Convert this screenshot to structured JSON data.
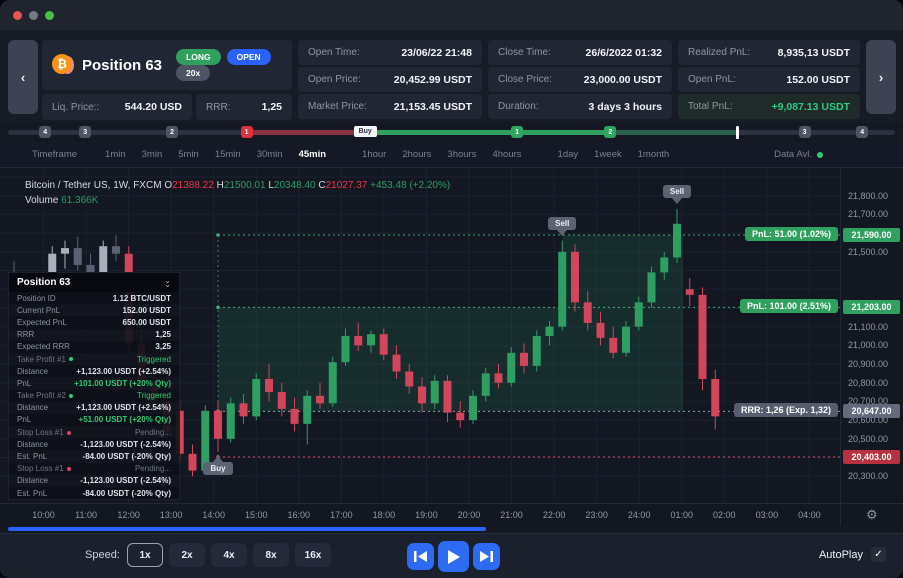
{
  "window": {
    "traffic_lights": [
      "#e8564f",
      "#757a82",
      "#46c240"
    ]
  },
  "header": {
    "title": "Position 63",
    "badges": [
      {
        "label": "LONG",
        "color": "#2fa05e"
      },
      {
        "label": "OPEN",
        "color": "#2962ff"
      },
      {
        "label": "20x",
        "color": "#4d5464"
      }
    ],
    "liq_cell": {
      "label": "Liq. Price::",
      "value": "544.20 USD"
    },
    "rrr_cell": {
      "label": "RRR:",
      "value": "1,25"
    },
    "stats": [
      {
        "label": "Open Time:",
        "value": "23/06/22 21:48"
      },
      {
        "label": "Close Time:",
        "value": "26/6/2022 01:32"
      },
      {
        "label": "Realized PnL:",
        "value": "8,935,13 USDT"
      },
      {
        "label": "Open Price:",
        "value": "20,452.99 USDT"
      },
      {
        "label": "Close Price:",
        "value": "23,000.00 USDT"
      },
      {
        "label": "Open PnL:",
        "value": "152.00 USDT"
      },
      {
        "label": "Market Price:",
        "value": "21,153.45 USDT"
      },
      {
        "label": "Duration:",
        "value": "3 days 3 hours"
      },
      {
        "label": "Total PnL:",
        "value": "+9,087.13 USDT",
        "value_color": "#2ecb81",
        "cell_bg": "#1e2b29"
      }
    ],
    "nav_left": "‹",
    "nav_right": "›"
  },
  "replay_bar": {
    "segments": [
      {
        "from": 0.269,
        "to": 0.402,
        "color": "#8a3340"
      },
      {
        "from": 0.402,
        "to": 0.679,
        "color": "#2fa05e"
      },
      {
        "from": 0.679,
        "to": 0.822,
        "color": "#27634a"
      }
    ],
    "markers": [
      {
        "label": "4",
        "pos": 0.042,
        "color": "#4d5464"
      },
      {
        "label": "3",
        "pos": 0.087,
        "color": "#4d5464"
      },
      {
        "label": "2",
        "pos": 0.185,
        "color": "#4d5464"
      },
      {
        "label": "1",
        "pos": 0.269,
        "color": "#e0303f"
      },
      {
        "label": "1",
        "pos": 0.574,
        "color": "#2fa660"
      },
      {
        "label": "2",
        "pos": 0.679,
        "color": "#2fa660"
      },
      {
        "label": "3",
        "pos": 0.898,
        "color": "#4d5464"
      },
      {
        "label": "4",
        "pos": 0.963,
        "color": "#4d5464"
      }
    ],
    "buy_label": "Buy",
    "buy_pos": 0.402,
    "cursor_pos": 0.822
  },
  "timeframe_bar": {
    "label": "Timeframe",
    "groups": [
      [
        "1min",
        "3min",
        "5min",
        "15min",
        "30min",
        "45min"
      ],
      [
        "1hour",
        "2hours",
        "3hours",
        "4hours"
      ],
      [
        "1day",
        "1week",
        "1month"
      ]
    ],
    "active": "45min",
    "data_avl_label": "Data Avl."
  },
  "chart_data": {
    "type": "candlestick",
    "symbol": "Bitcoin / Tether US, 1W, FXCM",
    "ohlc": {
      "o": "21388.22",
      "h": "21500.01",
      "l": "20348.40",
      "c": "21027.37",
      "change": "+453.48 (+2.20%)",
      "o_color": "#f23645",
      "h_color": "#2e9e5f",
      "l_color": "#2e9e5f",
      "c_color": "#f23645",
      "change_color": "#2e9e5f"
    },
    "volume_label": "Volume",
    "volume_value": "61.366K",
    "volume_color": "#2e9e5f",
    "colors": {
      "up": "#2f9e62",
      "down": "#d2455a",
      "dim_up": "#a9b0bc",
      "dim_down": "#596274",
      "grid": "#1b2130",
      "zone": "rgba(47,158,98,0.16)"
    },
    "dim_until": 9,
    "candles": [
      [
        21380,
        21450,
        21300,
        21330
      ],
      [
        21330,
        21390,
        21260,
        21300
      ],
      [
        21300,
        21360,
        21240,
        21330
      ],
      [
        21330,
        21530,
        21300,
        21490
      ],
      [
        21490,
        21560,
        21410,
        21520
      ],
      [
        21520,
        21580,
        21400,
        21430
      ],
      [
        21430,
        21490,
        21330,
        21370
      ],
      [
        21370,
        21560,
        21340,
        21530
      ],
      [
        21530,
        21590,
        21450,
        21490
      ],
      [
        21490,
        21530,
        20960,
        21010
      ],
      [
        21010,
        21090,
        20760,
        20810
      ],
      [
        20810,
        20890,
        20640,
        20700
      ],
      [
        20700,
        20760,
        20480,
        20540
      ],
      [
        20650,
        20700,
        20380,
        20420
      ],
      [
        20420,
        20470,
        20300,
        20330
      ],
      [
        20330,
        20680,
        20320,
        20650
      ],
      [
        20650,
        20700,
        20430,
        20500
      ],
      [
        20500,
        20720,
        20480,
        20690
      ],
      [
        20690,
        20740,
        20580,
        20620
      ],
      [
        20620,
        20850,
        20600,
        20820
      ],
      [
        20820,
        20900,
        20700,
        20750
      ],
      [
        20750,
        20800,
        20620,
        20660
      ],
      [
        20660,
        20720,
        20540,
        20580
      ],
      [
        20580,
        20760,
        20470,
        20730
      ],
      [
        20730,
        20800,
        20660,
        20690
      ],
      [
        20690,
        20940,
        20670,
        20910
      ],
      [
        20910,
        21090,
        20890,
        21050
      ],
      [
        21050,
        21120,
        20970,
        21000
      ],
      [
        21000,
        21080,
        20960,
        21060
      ],
      [
        21060,
        21090,
        20920,
        20950
      ],
      [
        20950,
        21000,
        20820,
        20860
      ],
      [
        20860,
        20900,
        20740,
        20780
      ],
      [
        20780,
        20830,
        20640,
        20690
      ],
      [
        20690,
        20840,
        20660,
        20810
      ],
      [
        20810,
        20840,
        20590,
        20640
      ],
      [
        20640,
        20700,
        20560,
        20600
      ],
      [
        20600,
        20760,
        20580,
        20730
      ],
      [
        20730,
        20880,
        20700,
        20850
      ],
      [
        20850,
        20900,
        20770,
        20800
      ],
      [
        20800,
        20990,
        20780,
        20960
      ],
      [
        20960,
        21010,
        20850,
        20890
      ],
      [
        20890,
        21080,
        20860,
        21050
      ],
      [
        21050,
        21130,
        21000,
        21100
      ],
      [
        21100,
        21560,
        21080,
        21500
      ],
      [
        21500,
        21540,
        21180,
        21230
      ],
      [
        21230,
        21290,
        21080,
        21120
      ],
      [
        21120,
        21180,
        21000,
        21040
      ],
      [
        21040,
        21100,
        20930,
        20960
      ],
      [
        20960,
        21130,
        20940,
        21100
      ],
      [
        21100,
        21260,
        21080,
        21230
      ],
      [
        21230,
        21420,
        21200,
        21390
      ],
      [
        21390,
        21500,
        21350,
        21470
      ],
      [
        21470,
        21730,
        21440,
        21650
      ],
      [
        21300,
        21360,
        21210,
        21270
      ],
      [
        21270,
        21310,
        20760,
        20820
      ],
      [
        20820,
        20870,
        20550,
        20620
      ]
    ],
    "markers": [
      {
        "type": "buy",
        "index": 16,
        "label": "Buy"
      },
      {
        "type": "sell",
        "index": 43,
        "label": "Sell"
      },
      {
        "type": "sell",
        "index": 52,
        "label": "Sell"
      }
    ],
    "levels": [
      {
        "price": 21590,
        "badge": "21,590.00",
        "badge_color": "#2fa05e",
        "line_color": "#3fae6f",
        "label": "PnL: 51.00 (1.02%)",
        "label_bg": "#2fa05e",
        "from_index": 16
      },
      {
        "price": 21203,
        "badge": "21,203.00",
        "badge_color": "#2fa05e",
        "line_color": "#3fae6f",
        "label": "PnL: 101.00 (2.51%)",
        "label_bg": "#2fa05e",
        "from_index": 16
      },
      {
        "price": 20647,
        "badge": "20,647.00",
        "badge_color": "#636a7b",
        "line_color": "#9aa0ae",
        "label": "RRR: 1,26 (Exp. 1,32)",
        "label_bg": "#565d6e",
        "from_index": 16
      },
      {
        "price": 20403,
        "badge": "20,403.00",
        "badge_color": "#b8313f",
        "line_color": "#e0455a",
        "label": null,
        "from_index": 16
      }
    ],
    "zones": [
      {
        "top_price": 21203,
        "bottom_price": 20647,
        "from_index": 16,
        "to_index": 52
      },
      {
        "top_price": 21590,
        "bottom_price": 21203,
        "from_index": 43,
        "to_index": 52
      }
    ],
    "price_axis_labels": [
      {
        "p": 21800,
        "label": "21,800.00"
      },
      {
        "p": 21700,
        "label": "21,700.00"
      },
      {
        "p": 21500,
        "label": "21,500.00"
      },
      {
        "p": 21100,
        "label": "21,100.00"
      },
      {
        "p": 21000,
        "label": "21,000.00"
      },
      {
        "p": 20900,
        "label": "20,900.00"
      },
      {
        "p": 20800,
        "label": "20,800.00"
      },
      {
        "p": 20700,
        "label": "20,700.00"
      },
      {
        "p": 20600,
        "label": "20,600.00"
      },
      {
        "p": 20500,
        "label": "20,500.00"
      },
      {
        "p": 20300,
        "label": "20,300.00"
      }
    ],
    "time_axis_labels": [
      "10:00",
      "11:00",
      "12:00",
      "13:00",
      "14:00",
      "15:00",
      "16:00",
      "17:00",
      "18:00",
      "19:00",
      "20:00",
      "21:00",
      "22:00",
      "23:00",
      "24:00",
      "01:00",
      "02:00",
      "03:00",
      "04:00"
    ]
  },
  "position_panel": {
    "title": "Position 63",
    "rows": [
      {
        "label": "Position ID",
        "value": "1.12 BTC/USDT",
        "kind": "n"
      },
      {
        "label": "Current PnL",
        "value": "152.00 USDT",
        "kind": "n"
      },
      {
        "label": "Expected PnL",
        "value": "650.00 USDT",
        "kind": "n"
      },
      {
        "label": "RRR",
        "value": "1,25",
        "kind": "n"
      },
      {
        "label": "Expected RRR",
        "value": "3,25",
        "kind": "n"
      },
      {
        "label": "Take Profit #1",
        "value": "Triggered",
        "kind": "tp"
      },
      {
        "label": "Distance",
        "value": "+1,123.00 USDT (+2.54%)",
        "kind": "n"
      },
      {
        "label": "PnL",
        "value": "+101.00 USDT (+20% Qty)",
        "kind": "g"
      },
      {
        "label": "Take Profit #2",
        "value": "Triggered",
        "kind": "tp"
      },
      {
        "label": "Distance",
        "value": "+1,123.00 USDT (+2.54%)",
        "kind": "n"
      },
      {
        "label": "PnL",
        "value": "+51.00 USDT (+20% Qty)",
        "kind": "g"
      },
      {
        "label": "Stop Loss #1",
        "value": "Pending...",
        "kind": "sl"
      },
      {
        "label": "Distance",
        "value": "-1,123.00 USDT (-2.54%)",
        "kind": "n"
      },
      {
        "label": "Est. PnL",
        "value": "-84.00 USDT (-20% Qty)",
        "kind": "n"
      },
      {
        "label": "Stop Loss #1",
        "value": "Pending...",
        "kind": "sl"
      },
      {
        "label": "Distance",
        "value": "-1,123.00 USDT (-2.54%)",
        "kind": "n"
      },
      {
        "label": "Est. PnL",
        "value": "-84.00 USDT (-20% Qty)",
        "kind": "n"
      }
    ],
    "status_colors": {
      "triggered": "#2ecb70",
      "pending": "#6f7685",
      "tp_dot": "#2ecb70",
      "sl_dot": "#e0455a"
    }
  },
  "controls": {
    "speed_label": "Speed:",
    "speeds": [
      "1x",
      "2x",
      "4x",
      "8x",
      "16x"
    ],
    "active_speed": "1x",
    "autoplay_label": "AutoPlay",
    "check_glyph": "✓"
  }
}
